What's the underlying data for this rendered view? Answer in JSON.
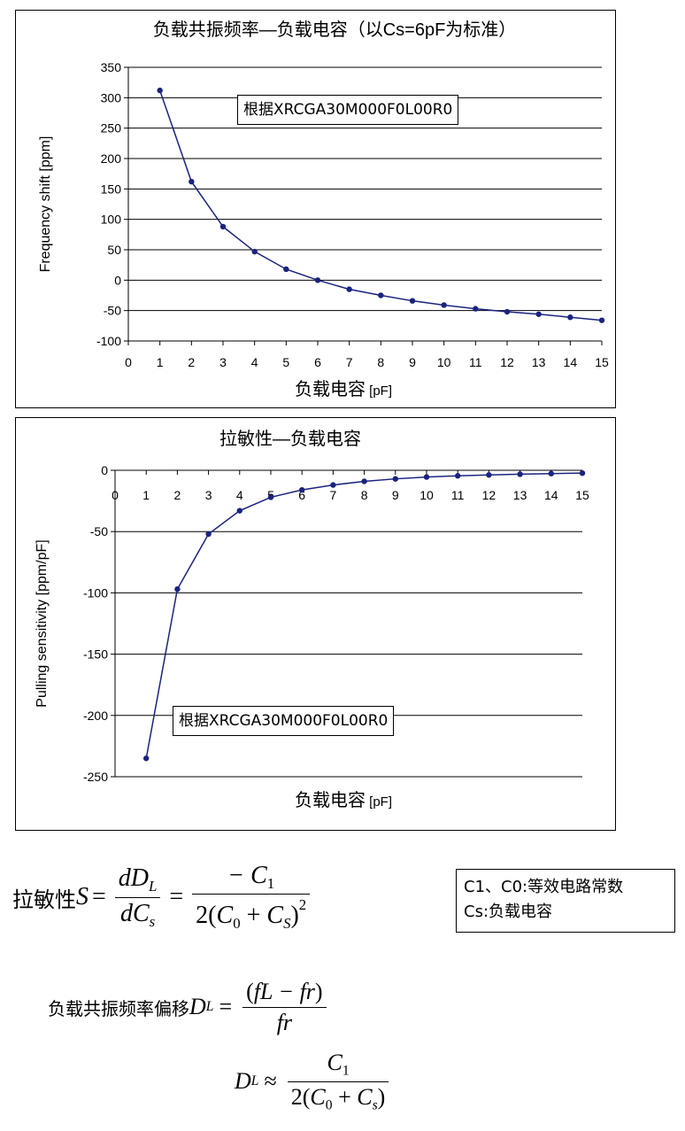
{
  "chart_data": [
    {
      "type": "line",
      "title": "负载共振频率—负载电容（以Cs=6pF为标准）",
      "xlabel_main": "负载电容",
      "xlabel_unit": "[pF]",
      "ylabel": "Frequency shift [ppm]",
      "xlim": [
        0,
        15
      ],
      "ylim": [
        -100,
        350
      ],
      "xticks": [
        "0",
        "1",
        "2",
        "3",
        "4",
        "5",
        "6",
        "7",
        "8",
        "9",
        "10",
        "11",
        "12",
        "13",
        "14",
        "15"
      ],
      "yticks": [
        "350",
        "300",
        "250",
        "200",
        "150",
        "100",
        "50",
        "0",
        "-50",
        "-100"
      ],
      "grid": "horizontal",
      "annotation": "根据XRCGA30M000F0L00R0",
      "series": [
        {
          "x": [
            1,
            2,
            3,
            4,
            5,
            6,
            7,
            8,
            9,
            10,
            11,
            12,
            13,
            14,
            15
          ],
          "y": [
            312,
            162,
            88,
            47,
            18,
            0,
            -15,
            -25,
            -34,
            -41,
            -47,
            -52,
            -56,
            -61,
            -66
          ]
        }
      ],
      "color": "#1a237e"
    },
    {
      "type": "line",
      "title": "拉敏性—负载电容",
      "xlabel_main": "负载电容",
      "xlabel_unit": "[pF]",
      "ylabel": "Pulling sensitivity [ppm/pF]",
      "xlim": [
        0,
        15
      ],
      "ylim": [
        -250,
        0
      ],
      "xticks": [
        "0",
        "1",
        "2",
        "3",
        "4",
        "5",
        "6",
        "7",
        "8",
        "9",
        "10",
        "11",
        "12",
        "13",
        "14",
        "15"
      ],
      "yticks": [
        "0",
        "-50",
        "-100",
        "-150",
        "-200",
        "-250"
      ],
      "grid": "horizontal",
      "annotation": "根据XRCGA30M000F0L00R0",
      "series": [
        {
          "x": [
            1,
            2,
            3,
            4,
            5,
            6,
            7,
            8,
            9,
            10,
            11,
            12,
            13,
            14,
            15
          ],
          "y": [
            -235,
            -97,
            -52,
            -33,
            -22,
            -16,
            -12,
            -9,
            -7,
            -5.5,
            -4.5,
            -3.8,
            -3.2,
            -2.7,
            -2.3
          ]
        }
      ],
      "color": "#1a237e"
    }
  ],
  "formulas": {
    "f1_label": "拉敏性",
    "f1_S": "S",
    "eq": "=",
    "approx": "≈",
    "dDL_d": "dD",
    "sub_L": "L",
    "dCs_d": "dC",
    "sub_s": "s",
    "minus_C1": "− C",
    "sub_1": "1",
    "two": "2",
    "C0": "C",
    "sub_0": "0",
    "plus": " + ",
    "CS": "C",
    "sub_S": "S",
    "sq": "2",
    "f2_label": "负载共振频率偏移",
    "D": "D",
    "fL_fr": "fL − fr",
    "fr": "fr",
    "C1": "C"
  },
  "legend_box": {
    "line1": "C1、C0:等效电路常数",
    "line2": "Cs:负载电容"
  }
}
